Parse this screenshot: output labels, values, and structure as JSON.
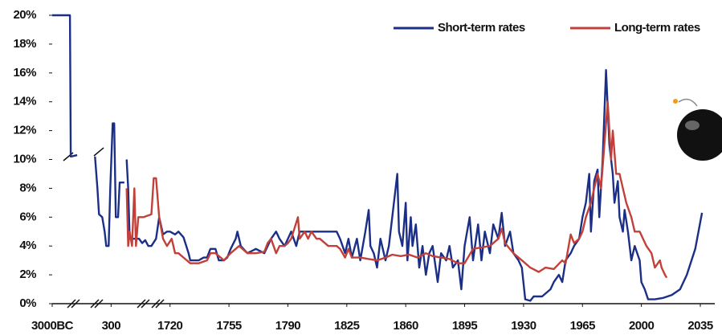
{
  "chart_data": {
    "type": "line",
    "legend": "top-right",
    "grid": false,
    "ylim": [
      0,
      20
    ],
    "yticks": [
      {
        "value": 0,
        "label": "0%"
      },
      {
        "value": 2,
        "label": "2%"
      },
      {
        "value": 4,
        "label": "4%"
      },
      {
        "value": 6,
        "label": "6%"
      },
      {
        "value": 8,
        "label": "8%"
      },
      {
        "value": 10,
        "label": "10%"
      },
      {
        "value": 12,
        "label": "12%"
      },
      {
        "value": 14,
        "label": "14%"
      },
      {
        "value": 16,
        "label": "16%"
      },
      {
        "value": 18,
        "label": "18%"
      },
      {
        "value": 20,
        "label": "20%"
      }
    ],
    "xlim": [
      -3000,
      2036
    ],
    "xticks": [
      {
        "value": -3000,
        "label": "3000BC"
      },
      300,
      1720,
      1755,
      1790,
      1825,
      1860,
      1895,
      1930,
      1965,
      2000,
      2035
    ],
    "series": [
      {
        "name": "Short-term rates",
        "color": "#1b2f86",
        "x": [
          -3000,
          -2006,
          -1960,
          -1599,
          -1000,
          -604,
          -469,
          -378,
          -198,
          -62,
          28,
          164,
          254,
          337,
          375,
          412,
          468,
          505,
          618,
          650,
          674,
          711,
          748,
          823,
          898,
          972,
          1047,
          1122,
          1197,
          1271,
          1383,
          1458,
          1552,
          1645,
          1720,
          1723,
          1725,
          1728,
          1731,
          1732,
          1735,
          1737,
          1740,
          1742,
          1744,
          1747,
          1749,
          1752,
          1754,
          1756,
          1759,
          1760,
          1762,
          1766,
          1771,
          1776,
          1780,
          1783,
          1785,
          1788,
          1790,
          1792,
          1795,
          1797,
          1800,
          1804,
          1809,
          1814,
          1819,
          1821,
          1824,
          1826,
          1828,
          1831,
          1833,
          1836,
          1838,
          1839,
          1841,
          1843,
          1845,
          1848,
          1850,
          1852,
          1855,
          1856,
          1858,
          1860,
          1861,
          1863,
          1864,
          1866,
          1868,
          1870,
          1872,
          1874,
          1876,
          1879,
          1881,
          1884,
          1886,
          1888,
          1891,
          1893,
          1895,
          1898,
          1900,
          1903,
          1905,
          1907,
          1910,
          1912,
          1915,
          1917,
          1919,
          1922,
          1924,
          1927,
          1929,
          1931,
          1934,
          1936,
          1941,
          1946,
          1948,
          1951,
          1953,
          1955,
          1958,
          1960,
          1963,
          1965,
          1967,
          1969,
          1970,
          1972,
          1974,
          1975,
          1977,
          1979,
          1981,
          1983,
          1984,
          1986,
          1987,
          1989,
          1990,
          1992,
          1994,
          1996,
          1999,
          2000,
          2002,
          2004,
          2008,
          2013,
          2018,
          2023,
          2027,
          2032,
          2036
        ],
        "values": [
          20,
          20,
          10.2,
          10.3,
          null,
          10.2,
          8,
          6.2,
          6,
          5,
          4,
          4,
          8,
          12.5,
          12.5,
          6,
          6,
          8.4,
          8.4,
          null,
          10,
          8,
          4.5,
          4.5,
          4.5,
          4.5,
          4.2,
          4.4,
          4,
          4,
          4.5,
          6,
          4.8,
          5,
          5,
          4.8,
          5,
          4.6,
          3.5,
          3,
          3,
          3,
          3.2,
          3.2,
          3.8,
          3.8,
          3,
          3,
          3.2,
          3.8,
          4.5,
          5,
          4,
          3.5,
          3.8,
          3.5,
          4.5,
          5,
          4.5,
          4,
          4.5,
          5,
          4,
          5,
          5,
          5,
          5,
          5,
          5,
          4.5,
          3.5,
          4.5,
          3.2,
          4.5,
          3,
          5,
          6.5,
          4,
          3.5,
          2.5,
          4.5,
          3,
          4,
          6,
          9,
          5,
          4,
          7,
          3,
          6,
          4,
          5.5,
          2.5,
          4,
          2,
          3.5,
          4,
          1.5,
          3.5,
          3,
          4,
          2.5,
          3,
          1,
          4,
          6,
          3,
          5.5,
          3,
          5,
          3.5,
          5.5,
          4.5,
          6.3,
          4,
          5,
          3.5,
          3,
          2.5,
          0.3,
          0.2,
          0.5,
          0.5,
          1,
          1.5,
          2,
          1.5,
          3,
          3.5,
          4,
          4.5,
          6,
          7,
          9,
          5,
          8.5,
          9.3,
          6,
          10,
          16.2,
          11,
          9,
          7,
          8.5,
          6,
          5,
          6.5,
          5,
          3,
          4,
          3,
          1.5,
          1,
          0.3,
          0.3,
          0.4,
          0.6,
          1,
          2,
          3.8,
          6.3
        ]
      },
      {
        "name": "Long-term rates",
        "color": "#c2403a",
        "x": [
          674,
          711,
          748,
          804,
          860,
          898,
          954,
          1085,
          1271,
          1327,
          1383,
          1458,
          1552,
          1645,
          1721,
          1723,
          1725,
          1728,
          1732,
          1737,
          1742,
          1744,
          1747,
          1752,
          1756,
          1761,
          1766,
          1771,
          1776,
          1778,
          1780,
          1783,
          1785,
          1788,
          1790,
          1792,
          1796,
          1797,
          1800,
          1802,
          1804,
          1807,
          1809,
          1814,
          1819,
          1821,
          1824,
          1826,
          1828,
          1833,
          1838,
          1843,
          1848,
          1852,
          1857,
          1862,
          1867,
          1872,
          1876,
          1881,
          1886,
          1891,
          1895,
          1900,
          1905,
          1910,
          1915,
          1917,
          1919,
          1924,
          1929,
          1934,
          1939,
          1943,
          1948,
          1953,
          1955,
          1958,
          1960,
          1963,
          1965,
          1967,
          1970,
          1972,
          1974,
          1976,
          1978,
          1980,
          1982,
          1983,
          1985,
          1987,
          1989,
          1991,
          1994,
          1996,
          1999,
          2001,
          2003,
          2006,
          2008,
          2011,
          2012,
          2014,
          2015
        ],
        "values": [
          8,
          4,
          5,
          4,
          8,
          4,
          6,
          6,
          6.2,
          8.7,
          8.7,
          6,
          4.5,
          4,
          4.5,
          3.5,
          3.5,
          3.2,
          2.8,
          2.8,
          3,
          3.5,
          3.5,
          3,
          3.5,
          4,
          3.5,
          3.5,
          3.6,
          4.2,
          4.5,
          3.5,
          4,
          4,
          4.2,
          4.5,
          6,
          4.5,
          5,
          4.5,
          5,
          4.5,
          4.5,
          4,
          4,
          3.8,
          3.2,
          3.8,
          3.2,
          3.2,
          3.1,
          3,
          3.2,
          3.4,
          3.3,
          3.4,
          3.2,
          3.5,
          3.3,
          3.2,
          3.1,
          2.8,
          2.8,
          3.8,
          3.9,
          4,
          4.5,
          5.2,
          4.2,
          3.5,
          3,
          2.5,
          2.2,
          2.5,
          2.4,
          3,
          2.8,
          4.8,
          4.2,
          4.5,
          5,
          6,
          7,
          8,
          9,
          8,
          11,
          14,
          10,
          12,
          9,
          9,
          8,
          7,
          6,
          5,
          5,
          4.5,
          4,
          3.5,
          2.5,
          3,
          2.5,
          2,
          1.8
        ]
      }
    ]
  }
}
